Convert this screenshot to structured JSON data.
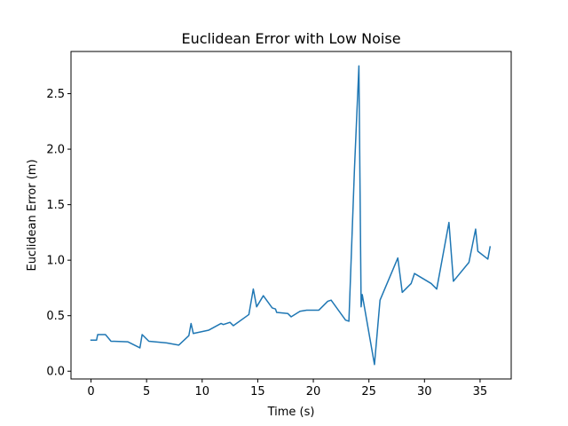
{
  "chart_data": {
    "type": "line",
    "title": "Euclidean Error with Low Noise",
    "xlabel": "Time (s)",
    "ylabel": "Euclidean Error (m)",
    "xlim": [
      -1.8,
      37.8
    ],
    "ylim": [
      -0.07,
      2.88
    ],
    "xticks": [
      0,
      5,
      10,
      15,
      20,
      25,
      30,
      35
    ],
    "yticks": [
      0.0,
      0.5,
      1.0,
      1.5,
      2.0,
      2.5
    ],
    "xtick_labels": [
      "0",
      "5",
      "10",
      "15",
      "20",
      "25",
      "30",
      "35"
    ],
    "ytick_labels": [
      "0.0",
      "0.5",
      "1.0",
      "1.5",
      "2.0",
      "2.5"
    ],
    "grid": false,
    "legend": false,
    "series": [
      {
        "color": "#1f77b4",
        "x": [
          0,
          0.5,
          0.6,
          1.3,
          1.8,
          3.3,
          4.4,
          4.6,
          5.2,
          6.8,
          7.9,
          8.8,
          9.0,
          9.2,
          10.6,
          11.7,
          11.9,
          12.5,
          12.8,
          14.2,
          14.6,
          14.9,
          15.5,
          16.3,
          16.6,
          16.7,
          17.7,
          18.0,
          18.8,
          19.4,
          20.5,
          21.3,
          21.6,
          22.9,
          23.2,
          23.7,
          24.1,
          24.3,
          24.4,
          25.5,
          26.0,
          27.6,
          28.0,
          28.8,
          29.1,
          30.6,
          31.1,
          32.2,
          32.6,
          34.0,
          34.6,
          34.8,
          35.7,
          35.9
        ],
        "y": [
          0.28,
          0.28,
          0.33,
          0.33,
          0.27,
          0.265,
          0.21,
          0.33,
          0.27,
          0.255,
          0.235,
          0.32,
          0.43,
          0.34,
          0.37,
          0.43,
          0.42,
          0.44,
          0.41,
          0.51,
          0.74,
          0.58,
          0.68,
          0.57,
          0.56,
          0.53,
          0.52,
          0.49,
          0.54,
          0.55,
          0.55,
          0.63,
          0.64,
          0.46,
          0.45,
          1.82,
          2.75,
          0.58,
          0.69,
          0.06,
          0.64,
          1.02,
          0.71,
          0.79,
          0.88,
          0.79,
          0.74,
          1.34,
          0.81,
          0.98,
          1.28,
          1.08,
          1.01,
          1.12
        ]
      }
    ]
  }
}
